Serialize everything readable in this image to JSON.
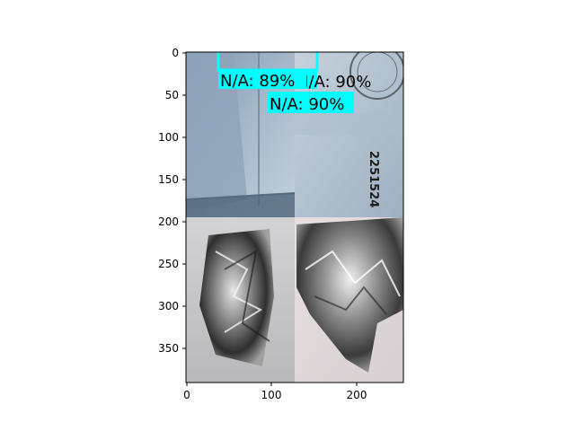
{
  "figure": {
    "x_ticks": [
      "0",
      "100",
      "200"
    ],
    "y_ticks": [
      "0",
      "50",
      "100",
      "150",
      "200",
      "250",
      "300",
      "350"
    ]
  },
  "detections": [
    {
      "label": "N/A: 89%",
      "color": "#00ffff"
    },
    {
      "label": "N/A: 90%",
      "color": "#00ffff"
    },
    {
      "label": "N/A: 90%",
      "color": "#00ffff"
    }
  ],
  "panels": {
    "top_left": {
      "subject": "cardboard box interior",
      "color": "#9fb3c8"
    },
    "top_right": {
      "subject": "cardboard with printed stamp",
      "printed_text": "2251524",
      "color": "#b9c7d4"
    },
    "bottom_left": {
      "subject": "crumpled aluminum foil",
      "color": "#bfbfbf"
    },
    "bottom_right": {
      "subject": "crumpled aluminum foil",
      "color": "#c9c9cc"
    }
  }
}
